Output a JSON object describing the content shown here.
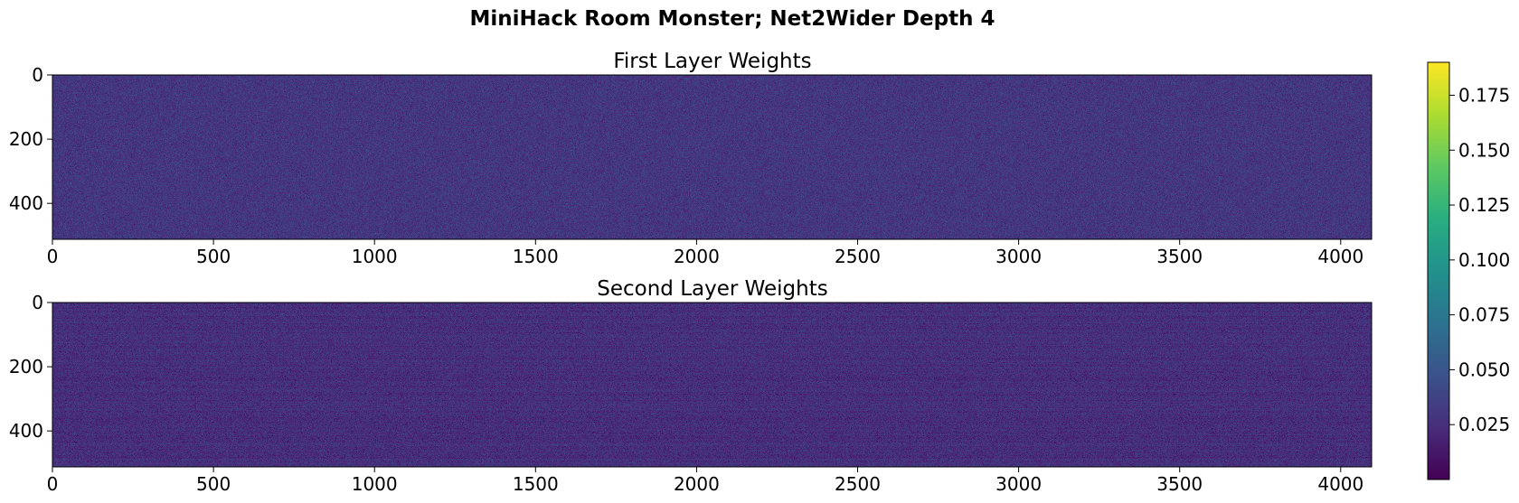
{
  "title": "MiniHack Room Monster; Net2Wider Depth 4",
  "chart_data": [
    {
      "type": "heatmap",
      "title": "First Layer Weights",
      "x_range": [
        0,
        4096
      ],
      "y_range": [
        0,
        512
      ],
      "y_inverted": true,
      "xticks": [
        0,
        500,
        1000,
        1500,
        2000,
        2500,
        3000,
        3500,
        4000
      ],
      "yticks": [
        0,
        200,
        400
      ],
      "colormap": "viridis",
      "value_range": [
        0.0,
        0.19
      ],
      "approx_typical_value": 0.03,
      "pattern": "uniform fine noise"
    },
    {
      "type": "heatmap",
      "title": "Second Layer Weights",
      "x_range": [
        0,
        4096
      ],
      "y_range": [
        0,
        512
      ],
      "y_inverted": true,
      "xticks": [
        0,
        500,
        1000,
        1500,
        2000,
        2500,
        3000,
        3500,
        4000
      ],
      "yticks": [
        0,
        200,
        400
      ],
      "colormap": "viridis",
      "value_range": [
        0.0,
        0.19
      ],
      "approx_typical_value": 0.025,
      "pattern": "fine noise with faint horizontal row stripes"
    }
  ],
  "colorbar": {
    "colormap": "viridis",
    "range": [
      0.0,
      0.19
    ],
    "ticks": [
      0.025,
      0.05,
      0.075,
      0.1,
      0.125,
      0.15,
      0.175
    ],
    "tick_labels": [
      "0.025",
      "0.050",
      "0.075",
      "0.100",
      "0.125",
      "0.150",
      "0.175"
    ]
  }
}
